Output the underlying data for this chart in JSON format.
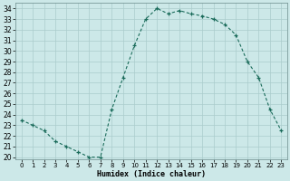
{
  "x": [
    0,
    1,
    2,
    3,
    4,
    5,
    6,
    7,
    8,
    9,
    10,
    11,
    12,
    13,
    14,
    15,
    16,
    17,
    18,
    19,
    20,
    21,
    22,
    23
  ],
  "y": [
    23.5,
    23.0,
    22.5,
    21.5,
    21.0,
    20.5,
    20.0,
    20.0,
    24.5,
    27.5,
    30.5,
    33.0,
    34.0,
    33.5,
    33.8,
    33.5,
    33.3,
    33.0,
    32.5,
    31.5,
    29.0,
    27.5,
    24.5,
    22.5
  ],
  "line_color": "#1a6b5a",
  "marker": "+",
  "bg_color": "#cce8e8",
  "grid_color": "#aacccc",
  "xlabel": "Humidex (Indice chaleur)",
  "ylim": [
    19.8,
    34.5
  ],
  "xlim": [
    -0.5,
    23.5
  ],
  "yticks": [
    20,
    21,
    22,
    23,
    24,
    25,
    26,
    27,
    28,
    29,
    30,
    31,
    32,
    33,
    34
  ],
  "xtick_labels": [
    "0",
    "1",
    "2",
    "3",
    "4",
    "5",
    "6",
    "7",
    "8",
    "9",
    "1011",
    "12",
    "",
    "1415",
    "1617",
    "1819",
    "2021",
    "2223",
    "",
    "",
    "",
    "",
    ""
  ]
}
